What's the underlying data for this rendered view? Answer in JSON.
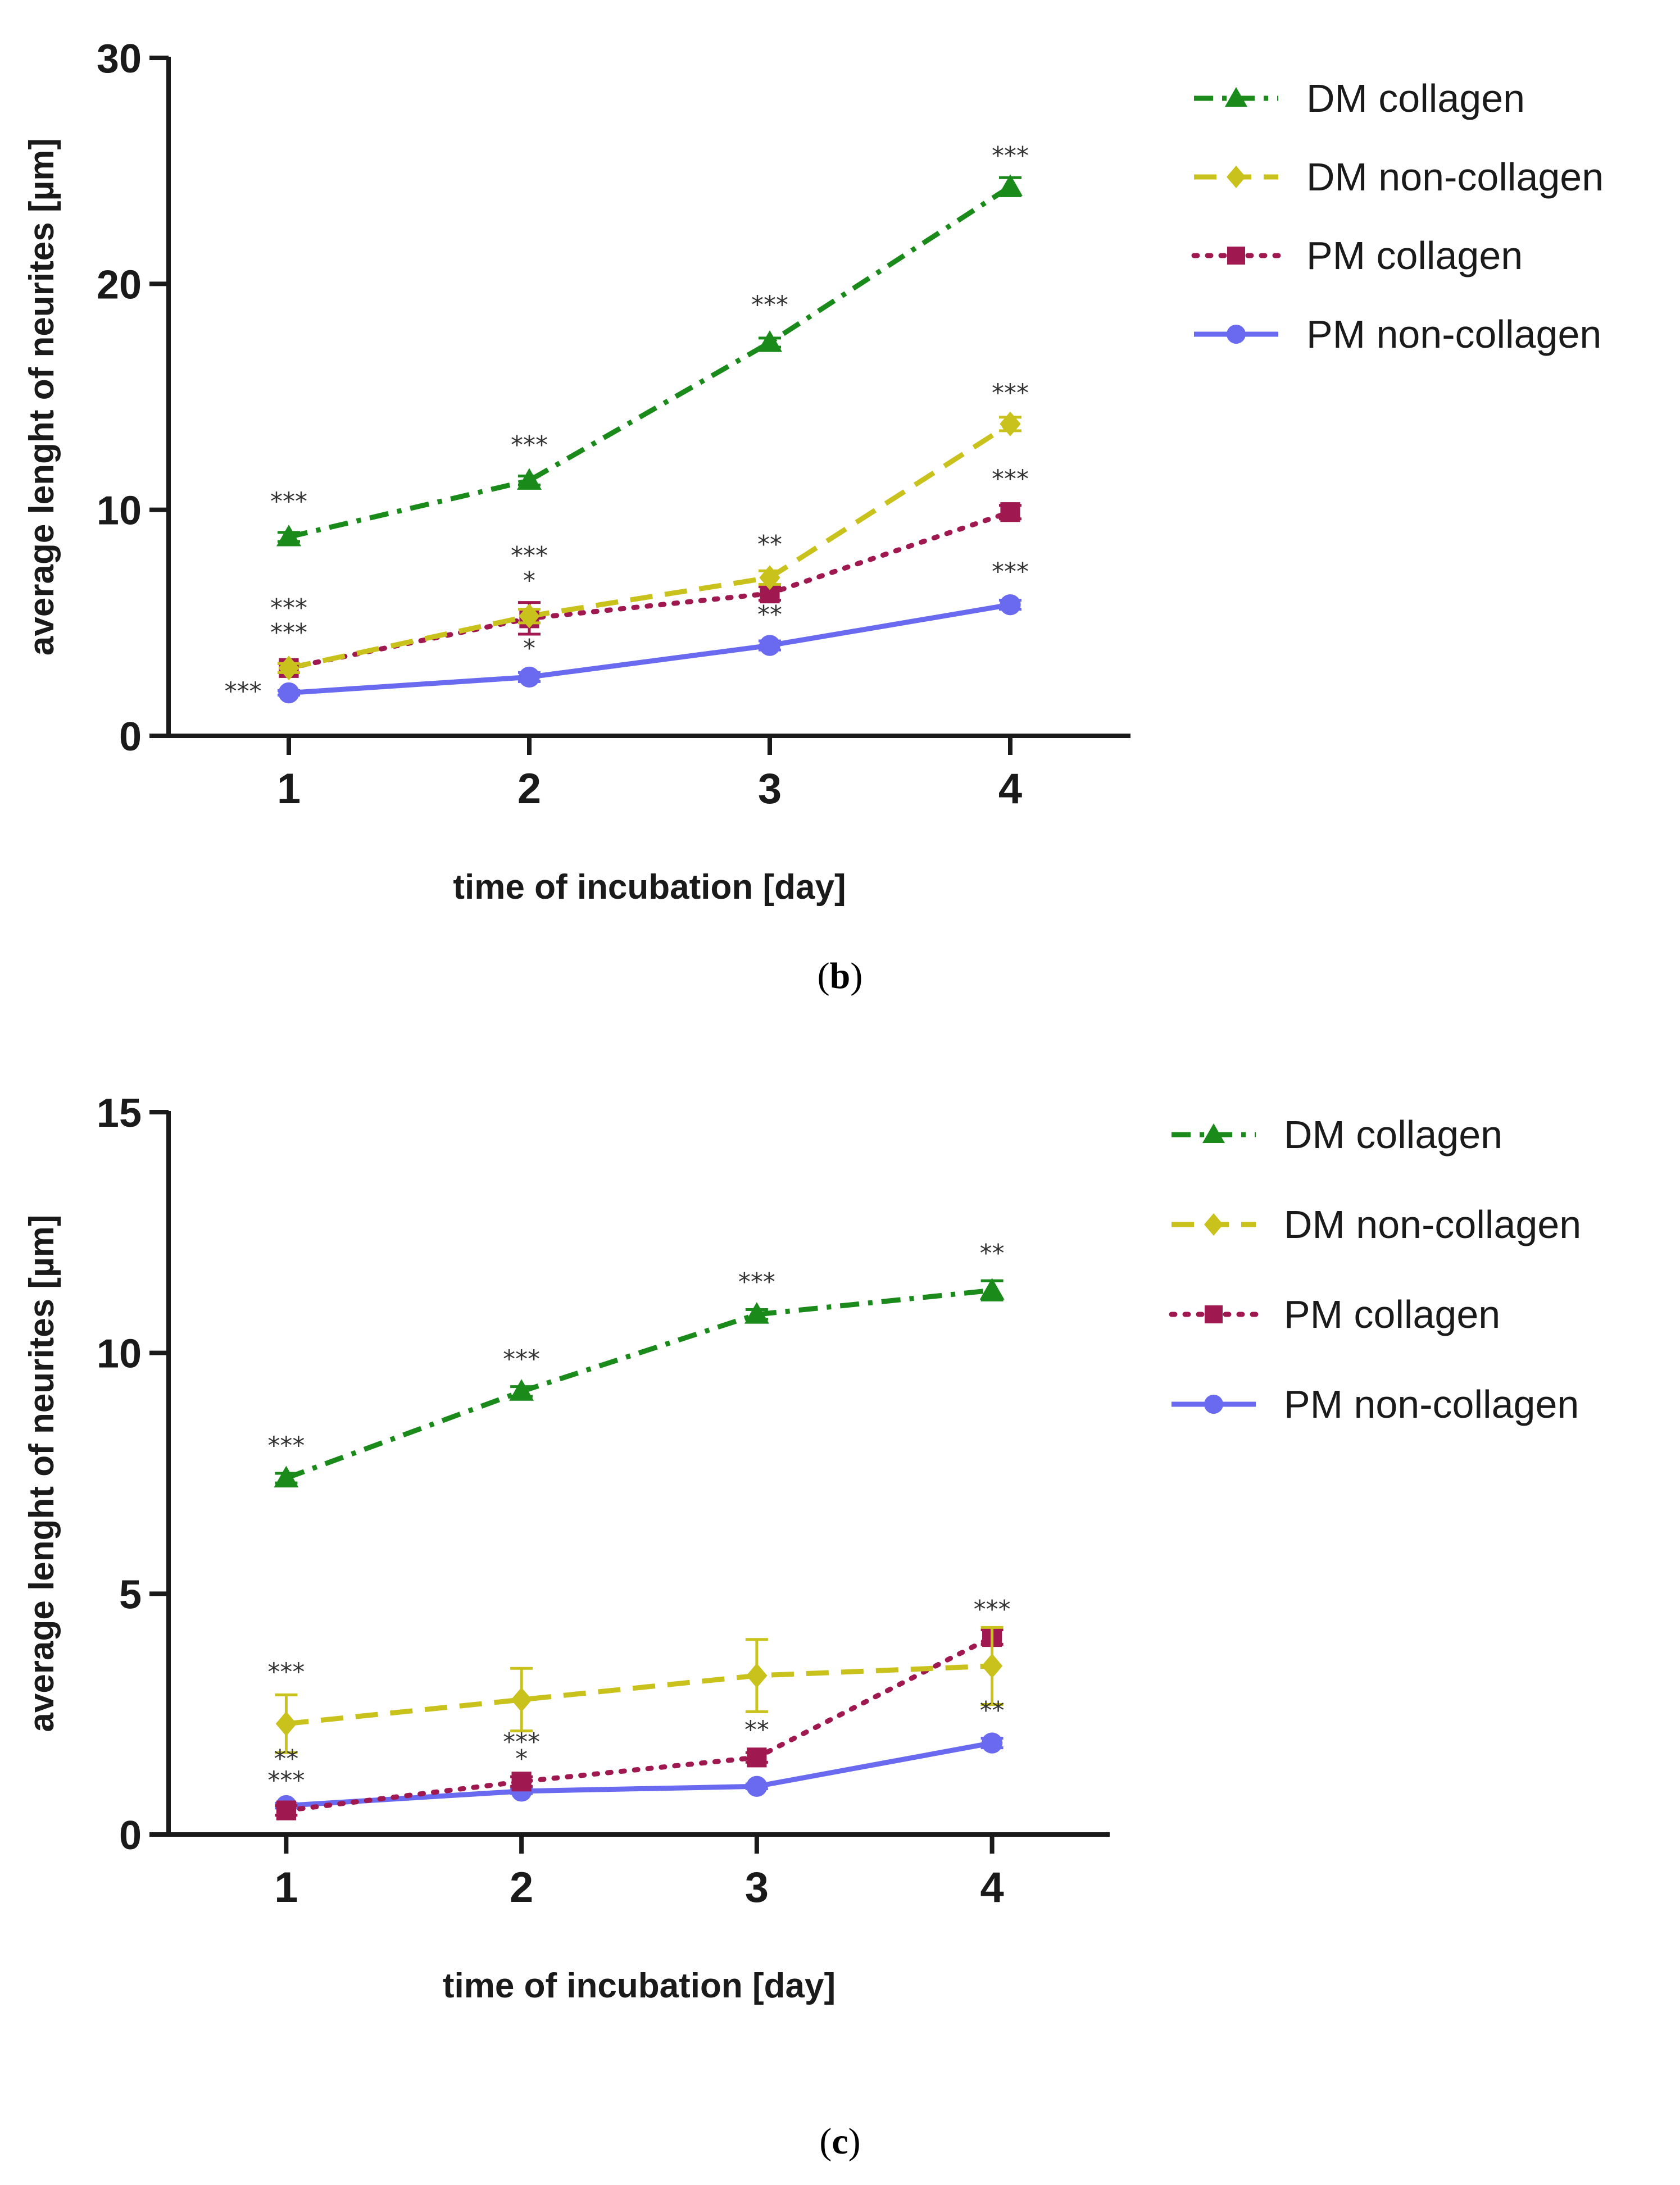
{
  "chart_data": [
    {
      "type": "line",
      "panel": "b",
      "caption_letter": "b",
      "xlabel": "time of incubation [day]",
      "ylabel": "average lenght of neurites [µm]",
      "ylim": [
        0,
        30
      ],
      "yticks": [
        0,
        10,
        20,
        30
      ],
      "xticks": [
        1,
        2,
        3,
        4
      ],
      "x": [
        1,
        2,
        3,
        4
      ],
      "legend_position": "right",
      "series": [
        {
          "name": "DM collagen",
          "color": "#1a8a1a",
          "marker": "triangle",
          "dash": "dashdot",
          "values": [
            8.8,
            11.3,
            17.4,
            24.3
          ],
          "errors": [
            0.2,
            0.2,
            0.2,
            0.4
          ]
        },
        {
          "name": "DM non-collagen",
          "color": "#c9c21c",
          "marker": "diamond",
          "dash": "dashed",
          "values": [
            3.0,
            5.3,
            7.0,
            13.8
          ],
          "errors": [
            0.2,
            0.3,
            0.3,
            0.3
          ]
        },
        {
          "name": "PM collagen",
          "color": "#a01850",
          "marker": "square",
          "dash": "dotted",
          "values": [
            3.0,
            5.2,
            6.3,
            9.9
          ],
          "errors": [
            0.2,
            0.7,
            0.3,
            0.3
          ]
        },
        {
          "name": "PM non-collagen",
          "color": "#6a6af0",
          "marker": "circle",
          "dash": "solid",
          "values": [
            1.9,
            2.6,
            4.0,
            5.8
          ],
          "errors": [
            0.1,
            0.2,
            0.2,
            0.2
          ]
        }
      ],
      "annotations": [
        {
          "x": 1,
          "y": 10.0,
          "text": "***"
        },
        {
          "x": 2,
          "y": 12.5,
          "text": "***"
        },
        {
          "x": 3,
          "y": 18.7,
          "text": "***"
        },
        {
          "x": 4,
          "y": 25.3,
          "text": "***"
        },
        {
          "x": 4,
          "y": 14.8,
          "text": "***"
        },
        {
          "x": 4,
          "y": 11.0,
          "text": "***"
        },
        {
          "x": 4,
          "y": 6.9,
          "text": "***"
        },
        {
          "x": 3,
          "y": 8.1,
          "text": "**"
        },
        {
          "x": 3,
          "y": 5.0,
          "text": "**"
        },
        {
          "x": 2,
          "y": 7.6,
          "text": "***"
        },
        {
          "x": 2,
          "y": 6.5,
          "text": "*"
        },
        {
          "x": 2,
          "y": 3.5,
          "text": "*"
        },
        {
          "x": 1,
          "y": 5.3,
          "text": "***"
        },
        {
          "x": 1,
          "y": 4.2,
          "text": "***"
        },
        {
          "x": 0.81,
          "y": 1.6,
          "text": "***"
        }
      ]
    },
    {
      "type": "line",
      "panel": "c",
      "caption_letter": "c",
      "xlabel": "time of incubation [day]",
      "ylabel": "average lenght of neurites [µm]",
      "ylim": [
        0,
        15
      ],
      "yticks": [
        0,
        5,
        10,
        15
      ],
      "xticks": [
        1,
        2,
        3,
        4
      ],
      "x": [
        1,
        2,
        3,
        4
      ],
      "legend_position": "right",
      "series": [
        {
          "name": "DM collagen",
          "color": "#1a8a1a",
          "marker": "triangle",
          "dash": "dashdot",
          "values": [
            7.4,
            9.2,
            10.8,
            11.3
          ],
          "errors": [
            0.1,
            0.1,
            0.1,
            0.2
          ]
        },
        {
          "name": "DM non-collagen",
          "color": "#c9c21c",
          "marker": "diamond",
          "dash": "dashed",
          "values": [
            2.3,
            2.8,
            3.3,
            3.5
          ],
          "errors": [
            0.6,
            0.65,
            0.75,
            0.8
          ]
        },
        {
          "name": "PM collagen",
          "color": "#a01850",
          "marker": "square",
          "dash": "dotted",
          "values": [
            0.5,
            1.1,
            1.6,
            4.1
          ],
          "errors": [
            0.1,
            0.1,
            0.1,
            0.15
          ]
        },
        {
          "name": "PM non-collagen",
          "color": "#6a6af0",
          "marker": "circle",
          "dash": "solid",
          "values": [
            0.6,
            0.9,
            1.0,
            1.9
          ],
          "errors": [
            0.05,
            0.05,
            0.05,
            0.1
          ]
        }
      ],
      "annotations": [
        {
          "x": 1,
          "y": 7.9,
          "text": "***"
        },
        {
          "x": 2,
          "y": 9.7,
          "text": "***"
        },
        {
          "x": 3,
          "y": 11.3,
          "text": "***"
        },
        {
          "x": 4,
          "y": 11.9,
          "text": "**"
        },
        {
          "x": 4,
          "y": 4.5,
          "text": "***"
        },
        {
          "x": 4,
          "y": 2.4,
          "text": "**"
        },
        {
          "x": 3,
          "y": 2.0,
          "text": "**"
        },
        {
          "x": 2,
          "y": 1.75,
          "text": "***"
        },
        {
          "x": 2,
          "y": 1.4,
          "text": "*"
        },
        {
          "x": 1,
          "y": 3.2,
          "text": "***"
        },
        {
          "x": 1,
          "y": 1.4,
          "text": "**"
        },
        {
          "x": 1,
          "y": 0.95,
          "text": "***"
        }
      ]
    }
  ]
}
